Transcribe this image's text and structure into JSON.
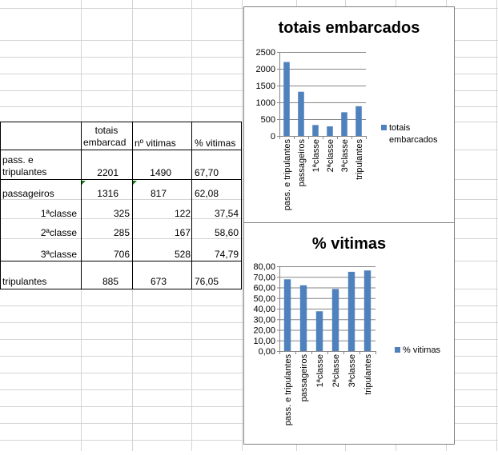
{
  "table": {
    "headers": {
      "totais_line1": "totais",
      "totais_line2": "embarcad",
      "vitimas": "nº vitimas",
      "pct": "% vitimas"
    },
    "rows": [
      {
        "label_line1": "pass. e",
        "label_line2": "tripulantes",
        "totais": "2201",
        "vitimas": "1490",
        "pct": "67,70"
      },
      {
        "label": "passageiros",
        "totais": "1316",
        "vitimas": "817",
        "pct": "62,08"
      },
      {
        "label": "1ªclasse",
        "totais": "325",
        "vitimas": "122",
        "pct": "37,54"
      },
      {
        "label": "2ªclasse",
        "totais": "285",
        "vitimas": "167",
        "pct": "58,60"
      },
      {
        "label": "3ªclasse",
        "totais": "706",
        "vitimas": "528",
        "pct": "74,79"
      },
      {
        "label": "tripulantes",
        "totais": "885",
        "vitimas": "673",
        "pct": "76,05"
      }
    ]
  },
  "chart_data": [
    {
      "type": "bar",
      "title": "totais embarcados",
      "categories": [
        "pass. e tripulantes",
        "passageiros",
        "1ªclasse",
        "2ªclasse",
        "3ªclasse",
        "tripulantes"
      ],
      "series": [
        {
          "name": "totais embarcados",
          "values": [
            2201,
            1316,
            325,
            285,
            706,
            885
          ]
        }
      ],
      "ylim": [
        0,
        2500
      ],
      "yticks": [
        "0",
        "500",
        "1000",
        "1500",
        "2000",
        "2500"
      ],
      "ytick_values": [
        0,
        500,
        1000,
        1500,
        2000,
        2500
      ],
      "grid": true,
      "legend": "right",
      "legend_lines": [
        "totais",
        "embarcados"
      ],
      "color": "#4f81bd"
    },
    {
      "type": "bar",
      "title": "% vitimas",
      "categories": [
        "pass. e tripulantes",
        "passageiros",
        "1ªclasse",
        "2ªclasse",
        "3ªclasse",
        "tripulantes"
      ],
      "series": [
        {
          "name": "% vitimas",
          "values": [
            67.7,
            62.08,
            37.54,
            58.6,
            74.79,
            76.05
          ]
        }
      ],
      "ylim": [
        0,
        80
      ],
      "yticks": [
        "0,00",
        "10,00",
        "20,00",
        "30,00",
        "40,00",
        "50,00",
        "60,00",
        "70,00",
        "80,00"
      ],
      "ytick_values": [
        0,
        10,
        20,
        30,
        40,
        50,
        60,
        70,
        80
      ],
      "grid": true,
      "legend": "right",
      "legend_lines": [
        "% vitimas"
      ],
      "color": "#4f81bd"
    }
  ]
}
